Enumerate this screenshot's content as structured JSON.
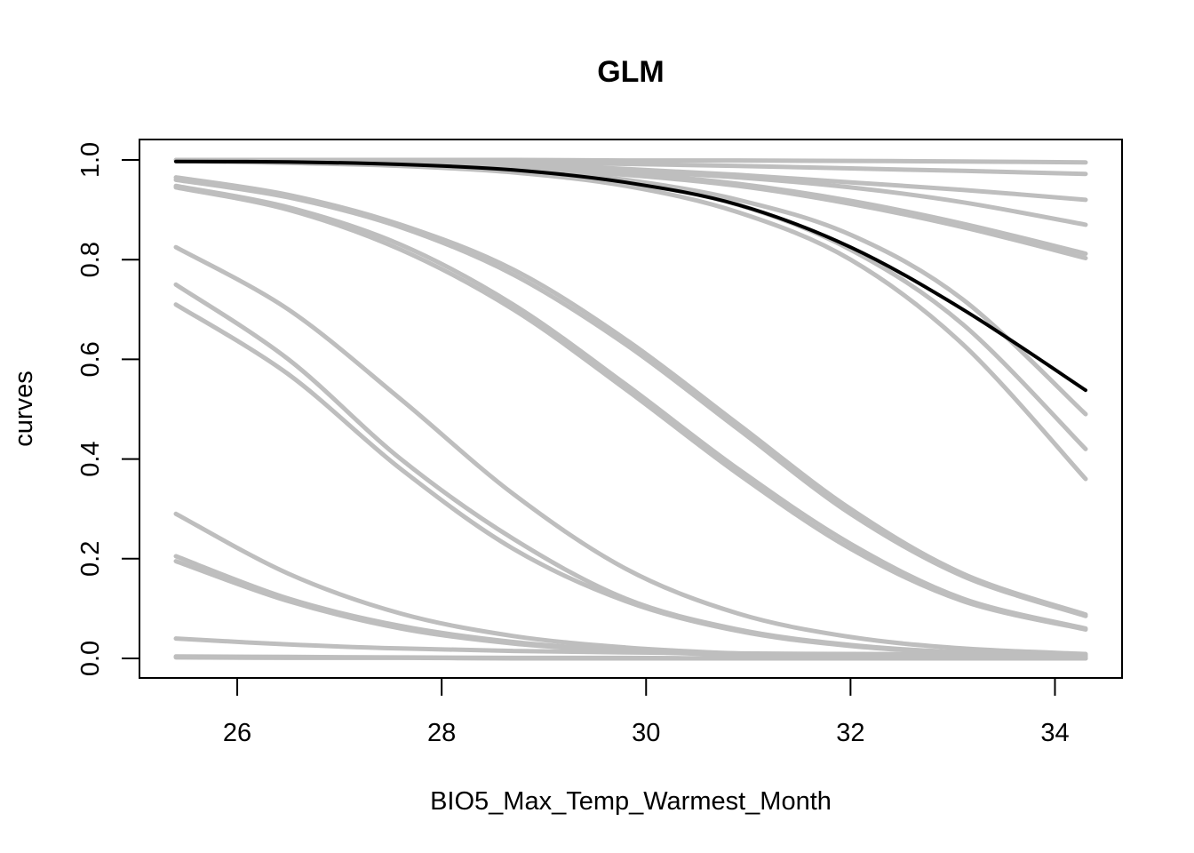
{
  "chart_data": {
    "type": "line",
    "title": "GLM",
    "xlabel": "BIO5_Max_Temp_Warmest_Month",
    "ylabel": "curves",
    "xlim": [
      25.4,
      34.3
    ],
    "ylim": [
      0.0,
      1.0
    ],
    "xticks": [
      26,
      28,
      30,
      32,
      34
    ],
    "xtick_labels": [
      "26",
      "28",
      "30",
      "32",
      "34"
    ],
    "yticks": [
      0.0,
      0.2,
      0.4,
      0.6,
      0.8,
      1.0
    ],
    "ytick_labels": [
      "0.0",
      "0.2",
      "0.4",
      "0.6",
      "0.8",
      "1.0"
    ],
    "grid": false,
    "legend": "none",
    "x": [
      25.4,
      26.5,
      27.6,
      28.7,
      29.8,
      30.9,
      32.0,
      33.1,
      34.3
    ],
    "colors": {
      "ensemble": "#bebebe",
      "mean": "#000000"
    },
    "series": [
      {
        "role": "ensemble",
        "values": [
          1.0,
          1.0,
          1.0,
          1.0,
          0.999,
          0.999,
          0.998,
          0.997,
          0.995
        ]
      },
      {
        "role": "ensemble",
        "values": [
          0.999,
          0.998,
          0.997,
          0.995,
          0.992,
          0.988,
          0.983,
          0.978,
          0.972
        ]
      },
      {
        "role": "ensemble",
        "values": [
          0.998,
          0.997,
          0.995,
          0.99,
          0.982,
          0.97,
          0.955,
          0.94,
          0.92
        ]
      },
      {
        "role": "ensemble",
        "values": [
          0.998,
          0.996,
          0.993,
          0.987,
          0.978,
          0.965,
          0.945,
          0.915,
          0.87
        ]
      },
      {
        "role": "ensemble",
        "values": [
          0.998,
          0.996,
          0.992,
          0.985,
          0.973,
          0.952,
          0.918,
          0.872,
          0.812
        ]
      },
      {
        "role": "ensemble",
        "values": [
          0.998,
          0.996,
          0.991,
          0.983,
          0.97,
          0.948,
          0.912,
          0.865,
          0.803
        ]
      },
      {
        "role": "ensemble",
        "values": [
          0.998,
          0.995,
          0.99,
          0.98,
          0.96,
          0.92,
          0.85,
          0.72,
          0.49
        ]
      },
      {
        "role": "ensemble",
        "values": [
          0.998,
          0.995,
          0.99,
          0.978,
          0.955,
          0.91,
          0.82,
          0.67,
          0.42
        ]
      },
      {
        "role": "ensemble",
        "values": [
          0.998,
          0.994,
          0.988,
          0.975,
          0.948,
          0.895,
          0.8,
          0.63,
          0.36
        ]
      },
      {
        "role": "ensemble",
        "values": [
          0.965,
          0.93,
          0.87,
          0.78,
          0.64,
          0.47,
          0.3,
          0.17,
          0.088
        ]
      },
      {
        "role": "ensemble",
        "values": [
          0.96,
          0.925,
          0.865,
          0.77,
          0.63,
          0.46,
          0.29,
          0.165,
          0.085
        ]
      },
      {
        "role": "ensemble",
        "values": [
          0.945,
          0.9,
          0.82,
          0.7,
          0.54,
          0.37,
          0.22,
          0.115,
          0.058
        ]
      },
      {
        "role": "ensemble",
        "values": [
          0.948,
          0.905,
          0.83,
          0.71,
          0.55,
          0.38,
          0.23,
          0.12,
          0.06
        ]
      },
      {
        "role": "ensemble",
        "values": [
          0.825,
          0.7,
          0.52,
          0.33,
          0.18,
          0.09,
          0.043,
          0.02,
          0.009
        ]
      },
      {
        "role": "ensemble",
        "values": [
          0.75,
          0.6,
          0.4,
          0.24,
          0.12,
          0.058,
          0.027,
          0.012,
          0.005
        ]
      },
      {
        "role": "ensemble",
        "values": [
          0.71,
          0.57,
          0.38,
          0.22,
          0.115,
          0.055,
          0.025,
          0.011,
          0.005
        ]
      },
      {
        "role": "ensemble",
        "values": [
          0.29,
          0.17,
          0.09,
          0.045,
          0.022,
          0.01,
          0.005,
          0.002,
          0.001
        ]
      },
      {
        "role": "ensemble",
        "values": [
          0.205,
          0.12,
          0.065,
          0.033,
          0.016,
          0.008,
          0.004,
          0.002,
          0.001
        ]
      },
      {
        "role": "ensemble",
        "values": [
          0.195,
          0.115,
          0.06,
          0.03,
          0.015,
          0.007,
          0.003,
          0.001,
          0.0
        ]
      },
      {
        "role": "ensemble",
        "values": [
          0.04,
          0.028,
          0.02,
          0.015,
          0.012,
          0.01,
          0.009,
          0.008,
          0.007
        ]
      },
      {
        "role": "ensemble",
        "values": [
          0.004,
          0.003,
          0.002,
          0.001,
          0.001,
          0.0,
          0.0,
          0.0,
          0.0
        ]
      },
      {
        "role": "ensemble",
        "values": [
          0.002,
          0.001,
          0.001,
          0.0,
          0.0,
          0.0,
          0.0,
          0.0,
          0.0
        ]
      },
      {
        "role": "mean",
        "values": [
          0.997,
          0.996,
          0.991,
          0.98,
          0.955,
          0.91,
          0.825,
          0.7,
          0.538
        ]
      }
    ]
  }
}
